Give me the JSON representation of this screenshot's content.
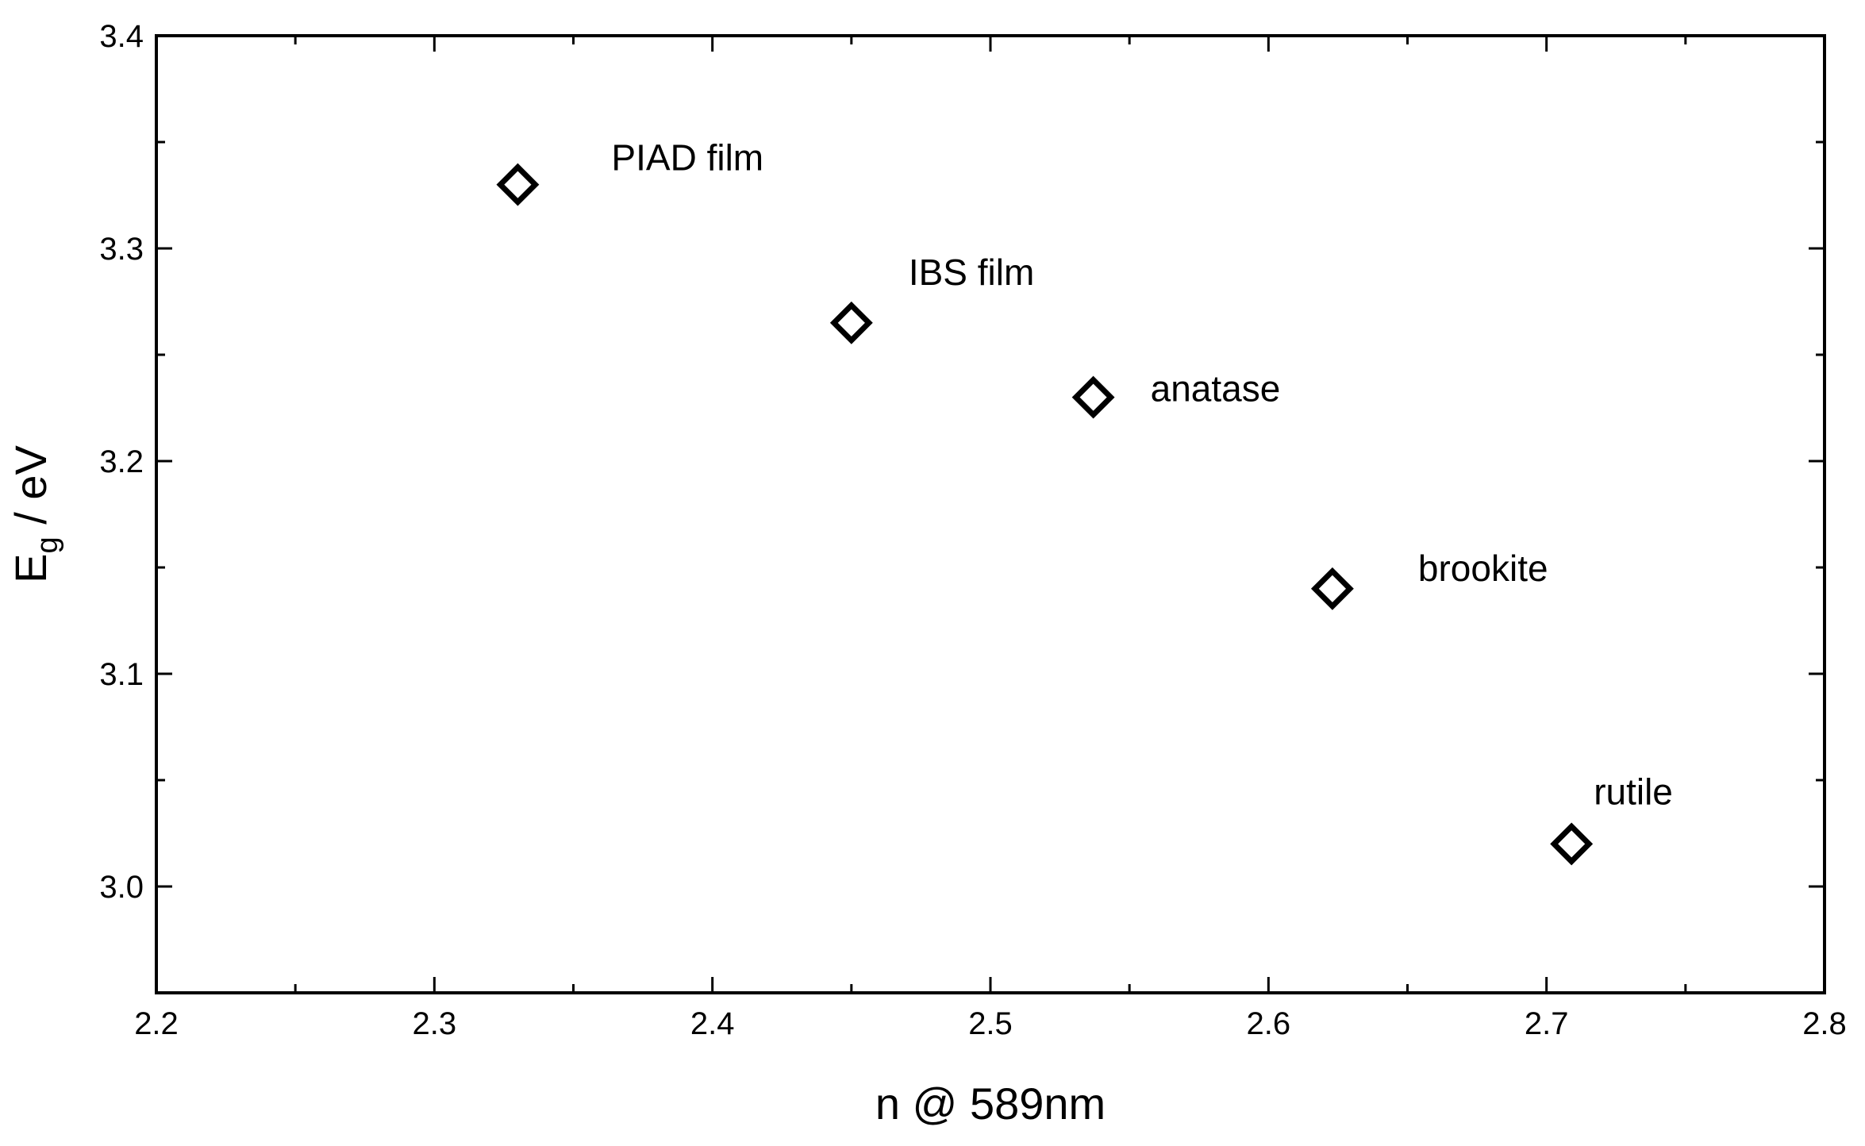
{
  "chart_data": {
    "type": "scatter",
    "xlabel": "n @ 589nm",
    "ylabel": "E",
    "ylabel_sub": "g",
    "ylabel_unit": " / eV",
    "xlim": [
      2.2,
      2.8
    ],
    "ylim": [
      2.95,
      3.4
    ],
    "x_ticks": [
      "2.2",
      "2.3",
      "2.4",
      "2.5",
      "2.6",
      "2.7",
      "2.8"
    ],
    "y_ticks": [
      "3.0",
      "3.1",
      "3.2",
      "3.3",
      "3.4"
    ],
    "grid": false,
    "marker": "open-diamond",
    "points": [
      {
        "label": "PIAD film",
        "x": 2.33,
        "y": 3.33
      },
      {
        "label": "IBS film",
        "x": 2.45,
        "y": 3.265
      },
      {
        "label": "anatase",
        "x": 2.537,
        "y": 3.23
      },
      {
        "label": "brookite",
        "x": 2.623,
        "y": 3.14
      },
      {
        "label": "rutile",
        "x": 2.709,
        "y": 3.02
      }
    ]
  }
}
